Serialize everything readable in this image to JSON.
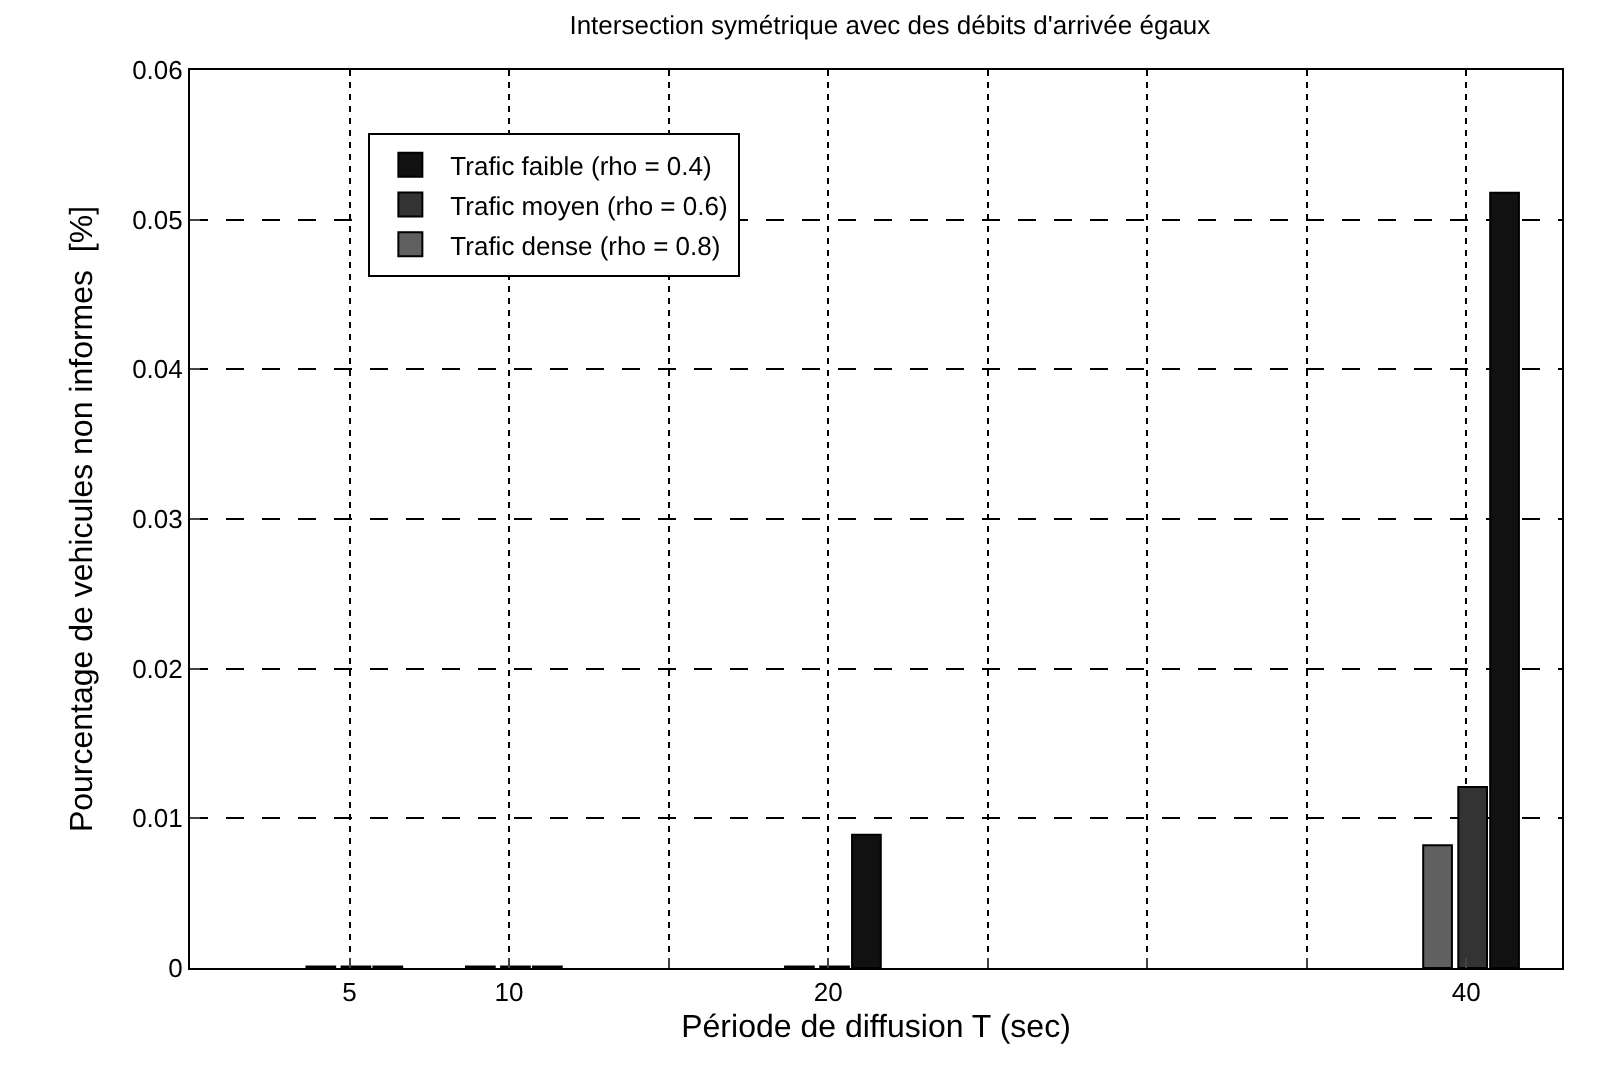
{
  "chart_data": {
    "type": "bar",
    "title": "Intersection symétrique avec des débits d'arrivée égaux",
    "xlabel": "Période de diffusion T (sec)",
    "ylabel": "Pourcentage de vehicules non informes  [%]",
    "x": [
      5,
      10,
      20,
      40
    ],
    "series": [
      {
        "name": "Trafic faible (rho = 0.4)",
        "color": "#111111",
        "values": [
          0.0001,
          0.0001,
          0.0089,
          0.0518
        ]
      },
      {
        "name": "Trafic moyen (rho = 0.6)",
        "color": "#333333",
        "values": [
          0.0001,
          0.0001,
          0.0001,
          0.0121
        ]
      },
      {
        "name": "Trafic dense (rho = 0.8)",
        "color": "#606060",
        "values": [
          0.0001,
          0.0001,
          0.0001,
          0.0082
        ]
      }
    ],
    "xlim": [
      0,
      43
    ],
    "xticks": [
      5,
      10,
      {
        "value": 15,
        "label": null
      },
      20,
      {
        "value": 25,
        "label": null
      },
      {
        "value": 30,
        "label": null
      },
      {
        "value": 35,
        "label": null
      },
      40
    ],
    "ylim": [
      0,
      0.06
    ],
    "yticks": [
      0,
      0.01,
      0.02,
      0.03,
      0.04,
      0.05,
      0.06
    ],
    "grid": true,
    "legend": "top left"
  }
}
